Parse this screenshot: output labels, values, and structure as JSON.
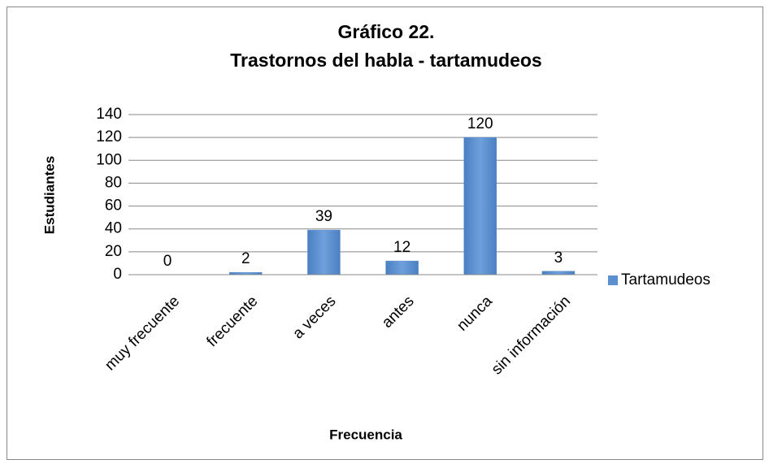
{
  "chart_data": {
    "type": "bar",
    "title": "Gráfico 22.",
    "subtitle": "Trastornos del habla - tartamudeos",
    "x_label": "Frecuencia",
    "y_label": "Estudiantes",
    "categories": [
      "muy frecuente",
      "frecuente",
      "a veces",
      "antes",
      "nunca",
      "sin información"
    ],
    "series": [
      {
        "name": "Tartamudeos",
        "color": "#5b8fd0",
        "values": [
          0,
          2,
          39,
          12,
          120,
          3
        ]
      }
    ],
    "ylim": [
      0,
      140
    ],
    "yticks": [
      0,
      20,
      40,
      60,
      80,
      100,
      120,
      140
    ],
    "grid": true,
    "legend": "right"
  }
}
